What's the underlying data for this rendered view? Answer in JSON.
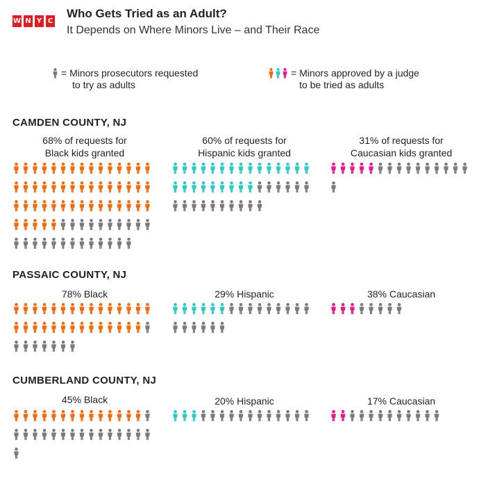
{
  "header": {
    "logo_letters": [
      "W",
      "N",
      "Y",
      "C"
    ],
    "title": "Who Gets Tried as an Adult?",
    "subtitle": "It Depends on Where Minors Live – and Their Race"
  },
  "legend": {
    "requested_line1": "= Minors prosecutors requested",
    "requested_line2": "to try as adults",
    "approved_line1": "= Minors approved by a judge",
    "approved_line2": "to be tried as adults"
  },
  "colors": {
    "requested": "#7a7a7a",
    "black": "#f26a0e",
    "hispanic": "#2ec9c2",
    "caucasian": "#e7198a"
  },
  "chart_data": {
    "type": "pictogram",
    "unit": "minor",
    "counties": [
      {
        "name": "CAMDEN COUNTY, NJ",
        "groups": [
          {
            "label_line1": "68% of requests for",
            "label_line2": "Black kids granted",
            "requested": 73,
            "approved": 50,
            "color_key": "black"
          },
          {
            "label_line1": "60% of requests for",
            "label_line2": "Hispanic kids granted",
            "requested": 40,
            "approved": 24,
            "color_key": "hispanic"
          },
          {
            "label_line1": "31% of requests for",
            "label_line2": "Caucasian  kids granted",
            "requested": 16,
            "approved": 5,
            "color_key": "caucasian"
          }
        ]
      },
      {
        "name": "PASSAIC COUNTY, NJ",
        "groups": [
          {
            "label_line1": "78% Black",
            "label_line2": "",
            "requested": 37,
            "approved": 29,
            "color_key": "black"
          },
          {
            "label_line1": "29% Hispanic",
            "label_line2": "",
            "requested": 21,
            "approved": 6,
            "color_key": "hispanic"
          },
          {
            "label_line1": "38% Caucasian",
            "label_line2": "",
            "requested": 8,
            "approved": 3,
            "color_key": "caucasian"
          }
        ]
      },
      {
        "name": "CUMBERLAND COUNTY, NJ",
        "groups": [
          {
            "label_line1": "45% Black",
            "label_line2": "",
            "requested": 31,
            "approved": 14,
            "color_key": "black"
          },
          {
            "label_line1": "20% Hispanic",
            "label_line2": "",
            "requested": 15,
            "approved": 3,
            "color_key": "hispanic"
          },
          {
            "label_line1": "17% Caucasian",
            "label_line2": "",
            "requested": 12,
            "approved": 2,
            "color_key": "caucasian"
          }
        ]
      }
    ]
  }
}
